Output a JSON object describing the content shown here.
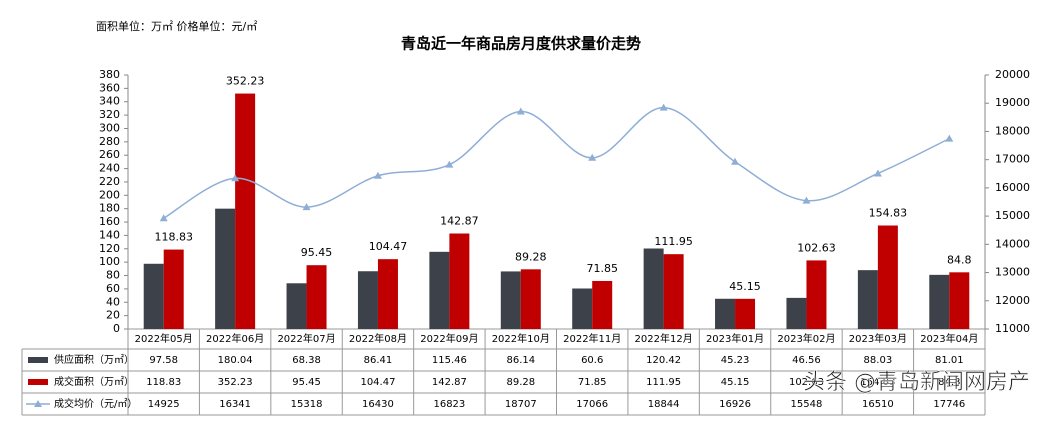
{
  "chart_data": {
    "type": "bar",
    "title": "青岛近一年商品房月度供求量价走势",
    "note": "面积单位：万㎡  价格单位：元/㎡",
    "watermark": "头条 @青岛新闻网房产",
    "categories": [
      "2022年05月",
      "2022年06月",
      "2022年07月",
      "2022年08月",
      "2022年09月",
      "2022年10月",
      "2022年11月",
      "2022年12月",
      "2023年01月",
      "2023年02月",
      "2023年03月",
      "2023年04月"
    ],
    "series": [
      {
        "name": "供应面积（万㎡）",
        "type": "bar",
        "color": "#3d4149",
        "values": [
          97.58,
          180.04,
          68.38,
          86.41,
          115.46,
          86.14,
          60.6,
          120.42,
          45.23,
          46.56,
          88.03,
          81.01
        ]
      },
      {
        "name": "成交面积（万㎡）",
        "type": "bar",
        "color": "#c00000",
        "data_labels": true,
        "values": [
          118.83,
          352.23,
          95.45,
          104.47,
          142.87,
          89.28,
          71.85,
          111.95,
          45.15,
          102.63,
          154.83,
          84.8
        ]
      },
      {
        "name": "成交均价（元/㎡）",
        "type": "line",
        "axis": "y2",
        "color": "#8eaed6",
        "values": [
          14925,
          16341,
          15318,
          16430,
          16823,
          18707,
          17066,
          18844,
          16926,
          15548,
          16510,
          17746
        ]
      }
    ],
    "ylim": [
      0,
      380
    ],
    "yticks": [
      0,
      20,
      40,
      60,
      80,
      100,
      120,
      140,
      160,
      180,
      200,
      220,
      240,
      260,
      280,
      300,
      320,
      340,
      360,
      380
    ],
    "y2lim": [
      11000,
      20000
    ],
    "y2ticks": [
      11000,
      12000,
      13000,
      14000,
      15000,
      16000,
      17000,
      18000,
      19000,
      20000
    ]
  }
}
